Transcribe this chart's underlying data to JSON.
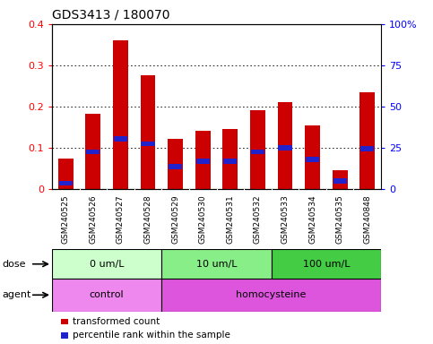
{
  "title": "GDS3413 / 180070",
  "samples": [
    "GSM240525",
    "GSM240526",
    "GSM240527",
    "GSM240528",
    "GSM240529",
    "GSM240530",
    "GSM240531",
    "GSM240532",
    "GSM240533",
    "GSM240534",
    "GSM240535",
    "GSM240848"
  ],
  "transformed_count": [
    0.075,
    0.183,
    0.36,
    0.277,
    0.122,
    0.142,
    0.145,
    0.192,
    0.21,
    0.155,
    0.047,
    0.235
  ],
  "percentile_rank": [
    0.015,
    0.09,
    0.122,
    0.11,
    0.055,
    0.068,
    0.068,
    0.09,
    0.1,
    0.072,
    0.02,
    0.098
  ],
  "ylim_left": [
    0,
    0.4
  ],
  "ylim_right": [
    0,
    100
  ],
  "yticks_left": [
    0,
    0.1,
    0.2,
    0.3,
    0.4
  ],
  "yticks_right": [
    0,
    25,
    50,
    75,
    100
  ],
  "ytick_labels_right": [
    "0",
    "25",
    "50",
    "75",
    "100%"
  ],
  "bar_color": "#cc0000",
  "percentile_color": "#2222cc",
  "dose_groups": [
    {
      "label": "0 um/L",
      "start": 0,
      "end": 4,
      "color": "#ccffcc"
    },
    {
      "label": "10 um/L",
      "start": 4,
      "end": 8,
      "color": "#88ee88"
    },
    {
      "label": "100 um/L",
      "start": 8,
      "end": 12,
      "color": "#44cc44"
    }
  ],
  "agent_spans": [
    {
      "label": "control",
      "start": 0,
      "end": 4,
      "color": "#ee88ee"
    },
    {
      "label": "homocysteine",
      "start": 4,
      "end": 12,
      "color": "#dd55dd"
    }
  ],
  "dose_label": "dose",
  "agent_label": "agent",
  "legend_red": "transformed count",
  "legend_blue": "percentile rank within the sample",
  "tick_area_color": "#cccccc",
  "bg_color": "#ffffff",
  "bar_width": 0.55,
  "blue_bar_height": 0.012,
  "blue_bar_width": 0.5
}
